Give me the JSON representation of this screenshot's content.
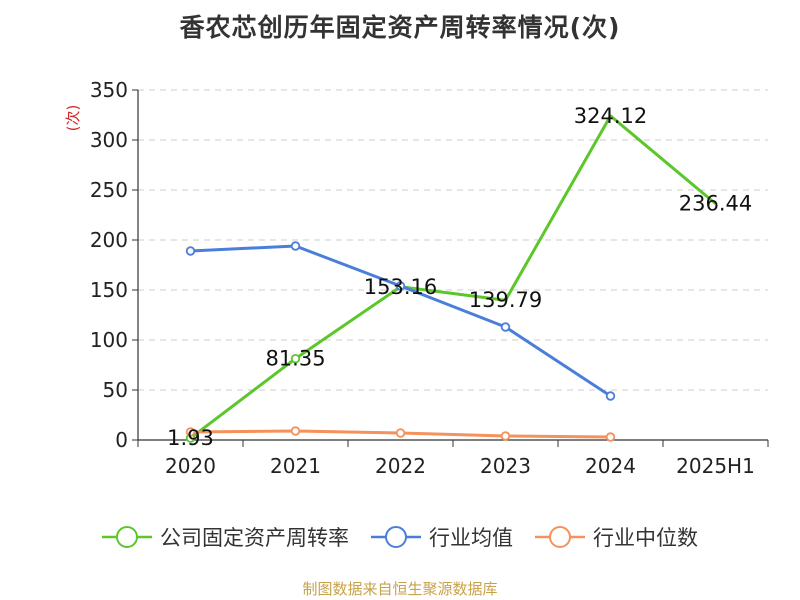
{
  "title": "香农芯创历年固定资产周转率情况(次)",
  "source": "制图数据来自恒生聚源数据库",
  "chart_data": {
    "type": "line",
    "unit_label": "(次)",
    "categories": [
      "2020",
      "2021",
      "2022",
      "2023",
      "2024",
      "2025H1"
    ],
    "ylim": [
      0,
      350
    ],
    "yticks": [
      0,
      50,
      100,
      150,
      200,
      250,
      300,
      350
    ],
    "grid": true,
    "legend_position": "bottom",
    "series": [
      {
        "name": "公司固定资产周转率",
        "color": "#5cc72a",
        "values": [
          1.93,
          81.35,
          153.16,
          139.79,
          324.12,
          236.44
        ],
        "labels": [
          "1.93",
          "81.35",
          "153.16",
          "139.79",
          "324.12",
          "236.44"
        ],
        "show_markers": [
          true,
          true,
          false,
          false,
          false,
          false
        ]
      },
      {
        "name": "行业均值",
        "color": "#4a7fd9",
        "values": [
          189,
          194,
          154,
          113,
          44,
          null
        ]
      },
      {
        "name": "行业中位数",
        "color": "#f5915a",
        "values": [
          8,
          9,
          7,
          4,
          3,
          null
        ]
      }
    ]
  }
}
